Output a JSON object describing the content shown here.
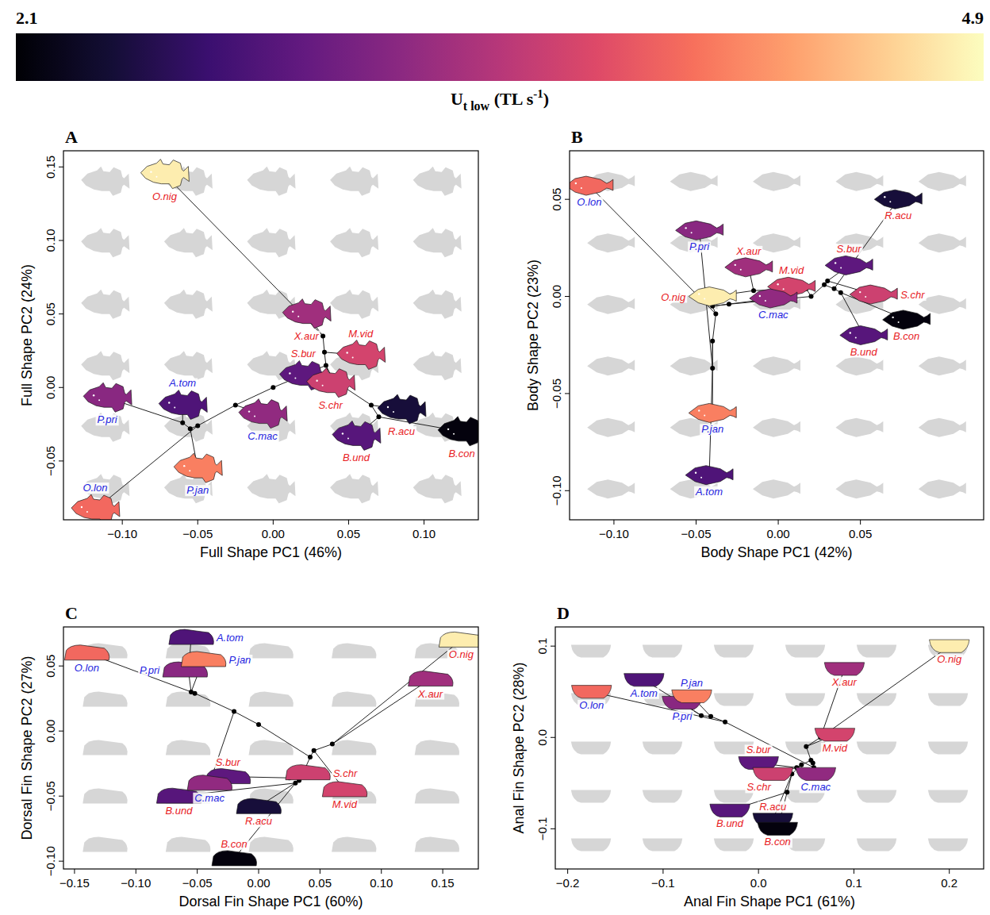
{
  "color_bar": {
    "title": [
      "U",
      "t low",
      " (TL s",
      "-1",
      ")"
    ],
    "range": [
      2.1,
      4.9
    ],
    "ticks": [
      2.1,
      4.9
    ]
  },
  "tree_edges": [
    [
      13,
      0
    ],
    [
      13,
      1
    ],
    [
      14,
      13
    ],
    [
      14,
      2
    ],
    [
      15,
      3
    ],
    [
      15,
      4
    ],
    [
      16,
      6
    ],
    [
      16,
      7
    ],
    [
      17,
      5
    ],
    [
      17,
      16
    ],
    [
      18,
      15
    ],
    [
      18,
      17
    ],
    [
      19,
      14
    ],
    [
      19,
      18
    ],
    [
      20,
      9
    ],
    [
      20,
      10
    ],
    [
      21,
      11
    ],
    [
      21,
      20
    ],
    [
      22,
      12
    ],
    [
      22,
      21
    ],
    [
      23,
      8
    ],
    [
      23,
      22
    ],
    [
      24,
      19
    ],
    [
      24,
      23
    ]
  ],
  "chart_data": [
    {
      "type": "scatter",
      "panel": "A",
      "marker": "fish",
      "x_label": "Full Shape PC1 (46%)",
      "y_label": "Full Shape PC2 (24%)",
      "labels": [
        "O.nig",
        "X.aur",
        "M.vid",
        "S.bur",
        "S.chr",
        "R.acu",
        "B.con",
        "B.und",
        "C.mac",
        "A.tom",
        "P.pri",
        "P.jan",
        "O.lon"
      ],
      "colors": [
        "#e8211f",
        "#e8211f",
        "#e8211f",
        "#e8211f",
        "#e8211f",
        "#e8211f",
        "#e8211f",
        "#e8211f",
        "#2323e0",
        "#2323e0",
        "#2323e0",
        "#2323e0",
        "#2323e0"
      ],
      "ut_low": [
        4.8,
        3.35,
        3.7,
        2.9,
        3.65,
        2.4,
        2.15,
        2.85,
        3.25,
        2.8,
        3.2,
        4.15,
        4.0
      ],
      "x": [
        -0.072,
        0.022,
        0.058,
        0.02,
        0.038,
        0.085,
        0.125,
        0.055,
        -0.007,
        -0.06,
        -0.11,
        -0.05,
        -0.118
      ],
      "values": [
        0.145,
        0.05,
        0.022,
        0.008,
        0.003,
        -0.015,
        -0.03,
        -0.033,
        -0.018,
        -0.012,
        -0.007,
        -0.055,
        -0.083
      ],
      "nodes": {
        "x": [
          0.033,
          0.034,
          0.03,
          0.07,
          0.065,
          0.04,
          0.035,
          -0.06,
          -0.055,
          -0.05,
          -0.025,
          0.0
        ],
        "y": [
          0.035,
          0.024,
          0.006,
          -0.02,
          -0.012,
          0.005,
          0.015,
          -0.024,
          -0.028,
          -0.026,
          -0.012,
          0.0
        ]
      },
      "xlim": [
        -0.139,
        0.136
      ],
      "ylim": [
        -0.09,
        0.161
      ],
      "xticks": [
        {
          "value": -0.1,
          "label": "−0.10"
        },
        {
          "value": -0.05,
          "label": "−0.05"
        },
        {
          "value": 0,
          "label": "0.00"
        },
        {
          "value": 0.05,
          "label": "0.05"
        },
        {
          "value": 0.1,
          "label": "0.10"
        }
      ],
      "yticks": [
        {
          "value": -0.05,
          "label": "−0.05"
        },
        {
          "value": 0,
          "label": "0.00"
        },
        {
          "value": 0.05,
          "label": "0.05"
        },
        {
          "value": 0.1,
          "label": "0.10"
        },
        {
          "value": 0.15,
          "label": "0.15"
        }
      ]
    },
    {
      "type": "scatter",
      "panel": "B",
      "marker": "body",
      "x_label": "Body Shape PC1 (42%)",
      "y_label": "Body Shape PC2 (23%)",
      "labels": [
        "O.nig",
        "X.aur",
        "M.vid",
        "S.bur",
        "S.chr",
        "R.acu",
        "B.con",
        "B.und",
        "C.mac",
        "A.tom",
        "P.pri",
        "P.jan",
        "O.lon"
      ],
      "colors": [
        "#e8211f",
        "#e8211f",
        "#e8211f",
        "#e8211f",
        "#e8211f",
        "#e8211f",
        "#e8211f",
        "#e8211f",
        "#2323e0",
        "#2323e0",
        "#2323e0",
        "#2323e0",
        "#2323e0"
      ],
      "ut_low": [
        4.8,
        3.35,
        3.7,
        2.9,
        3.65,
        2.4,
        2.15,
        2.85,
        3.25,
        2.8,
        3.2,
        4.15,
        4.0
      ],
      "x": [
        -0.04,
        -0.018,
        0.008,
        0.043,
        0.058,
        0.073,
        0.078,
        0.052,
        -0.003,
        -0.042,
        -0.048,
        -0.04,
        -0.115
      ],
      "values": [
        0.0,
        0.015,
        0.005,
        0.016,
        0.001,
        0.05,
        -0.012,
        -0.02,
        -0.001,
        -0.092,
        0.034,
        -0.06,
        0.057
      ],
      "nodes": {
        "x": [
          -0.015,
          0.017,
          0.03,
          0.038,
          0.034,
          0.028,
          0.02,
          -0.04,
          -0.04,
          -0.038,
          -0.04,
          -0.03
        ],
        "y": [
          0.003,
          0.004,
          0.008,
          0.002,
          0.004,
          0.006,
          0.0,
          -0.037,
          -0.023,
          -0.009,
          -0.005,
          -0.004
        ]
      },
      "xlim": [
        -0.127,
        0.125
      ],
      "ylim": [
        -0.115,
        0.075
      ],
      "xticks": [
        {
          "value": -0.1,
          "label": "−0.10"
        },
        {
          "value": -0.05,
          "label": "−0.05"
        },
        {
          "value": 0,
          "label": "0.00"
        },
        {
          "value": 0.05,
          "label": "0.05"
        }
      ],
      "yticks": [
        {
          "value": -0.1,
          "label": "−0.10"
        },
        {
          "value": -0.05,
          "label": "−0.05"
        },
        {
          "value": 0,
          "label": "0.00"
        },
        {
          "value": 0.05,
          "label": "0.05"
        }
      ]
    },
    {
      "type": "scatter",
      "panel": "C",
      "marker": "dorsal-fin",
      "x_label": "Dorsal Fin Shape PC1 (60%)",
      "y_label": "Dorsal Fin Shape PC2 (27%)",
      "labels": [
        "O.nig",
        "X.aur",
        "M.vid",
        "S.bur",
        "S.chr",
        "R.acu",
        "B.con",
        "B.und",
        "C.mac",
        "A.tom",
        "P.pri",
        "P.jan",
        "O.lon"
      ],
      "colors": [
        "#e8211f",
        "#e8211f",
        "#e8211f",
        "#e8211f",
        "#e8211f",
        "#e8211f",
        "#e8211f",
        "#e8211f",
        "#2323e0",
        "#2323e0",
        "#2323e0",
        "#2323e0",
        "#2323e0"
      ],
      "ut_low": [
        4.8,
        3.35,
        3.7,
        2.9,
        3.65,
        2.4,
        2.15,
        2.85,
        3.25,
        2.8,
        3.2,
        4.15,
        4.0
      ],
      "x": [
        0.165,
        0.14,
        0.07,
        -0.025,
        0.04,
        0.0,
        -0.02,
        -0.065,
        -0.04,
        -0.055,
        -0.06,
        -0.045,
        -0.14
      ],
      "values": [
        0.07,
        0.04,
        -0.045,
        -0.035,
        -0.032,
        -0.058,
        -0.098,
        -0.05,
        -0.04,
        0.072,
        0.047,
        0.055,
        0.06
      ],
      "nodes": {
        "x": [
          0.06,
          0.045,
          0.025,
          0.03,
          0.033,
          0.035,
          0.042,
          -0.057,
          -0.055,
          -0.052,
          -0.02,
          0.0
        ],
        "y": [
          -0.01,
          -0.015,
          -0.036,
          -0.04,
          -0.038,
          -0.035,
          -0.02,
          0.045,
          0.03,
          0.029,
          0.015,
          0.005
        ]
      },
      "xlim": [
        -0.159,
        0.179
      ],
      "ylim": [
        -0.106,
        0.08
      ],
      "xticks": [
        {
          "value": -0.15,
          "label": "−0.15"
        },
        {
          "value": -0.1,
          "label": "−0.10"
        },
        {
          "value": -0.05,
          "label": "−0.05"
        },
        {
          "value": 0,
          "label": "0.00"
        },
        {
          "value": 0.05,
          "label": "0.05"
        },
        {
          "value": 0.1,
          "label": "0.10"
        },
        {
          "value": 0.15,
          "label": "0.15"
        }
      ],
      "yticks": [
        {
          "value": -0.1,
          "label": "−0.10"
        },
        {
          "value": -0.05,
          "label": "−0.05"
        },
        {
          "value": 0,
          "label": "0.00"
        },
        {
          "value": 0.05,
          "label": "0.05"
        }
      ]
    },
    {
      "type": "scatter",
      "panel": "D",
      "marker": "anal-fin",
      "x_label": "Anal Fin Shape PC1 (61%)",
      "y_label": "Anal Fin Shape PC2 (28%)",
      "labels": [
        "O.nig",
        "X.aur",
        "M.vid",
        "S.bur",
        "S.chr",
        "R.acu",
        "B.con",
        "B.und",
        "C.mac",
        "A.tom",
        "P.pri",
        "P.jan",
        "O.lon"
      ],
      "colors": [
        "#e8211f",
        "#e8211f",
        "#e8211f",
        "#e8211f",
        "#e8211f",
        "#e8211f",
        "#e8211f",
        "#e8211f",
        "#2323e0",
        "#2323e0",
        "#2323e0",
        "#2323e0",
        "#2323e0"
      ],
      "ut_low": [
        4.8,
        3.35,
        3.7,
        2.9,
        3.65,
        2.4,
        2.15,
        2.85,
        3.25,
        2.8,
        3.2,
        4.15,
        4.0
      ],
      "x": [
        0.2,
        0.09,
        0.08,
        0.0,
        0.015,
        0.015,
        0.02,
        -0.03,
        0.06,
        -0.12,
        -0.08,
        -0.07,
        -0.175
      ],
      "values": [
        0.1,
        0.075,
        0.003,
        -0.028,
        -0.04,
        -0.09,
        -0.1,
        -0.08,
        -0.04,
        0.063,
        0.038,
        0.045,
        0.05
      ],
      "nodes": {
        "x": [
          0.065,
          0.05,
          0.04,
          0.03,
          0.035,
          0.045,
          0.055,
          -0.06,
          -0.05,
          -0.035,
          0.058,
          0.057
        ],
        "y": [
          0.0,
          -0.01,
          -0.033,
          -0.06,
          -0.04,
          -0.03,
          -0.025,
          0.024,
          0.023,
          0.017,
          -0.033,
          -0.028
        ]
      },
      "xlim": [
        -0.213,
        0.236
      ],
      "ylim": [
        -0.144,
        0.121
      ],
      "xticks": [
        {
          "value": -0.2,
          "label": "−0.2"
        },
        {
          "value": -0.1,
          "label": "−0.1"
        },
        {
          "value": 0,
          "label": "0.0"
        },
        {
          "value": 0.1,
          "label": "0.1"
        },
        {
          "value": 0.2,
          "label": "0.2"
        }
      ],
      "yticks": [
        {
          "value": -0.1,
          "label": "−0.1"
        },
        {
          "value": 0,
          "label": "0.0"
        },
        {
          "value": 0.1,
          "label": "0.1"
        }
      ]
    }
  ]
}
